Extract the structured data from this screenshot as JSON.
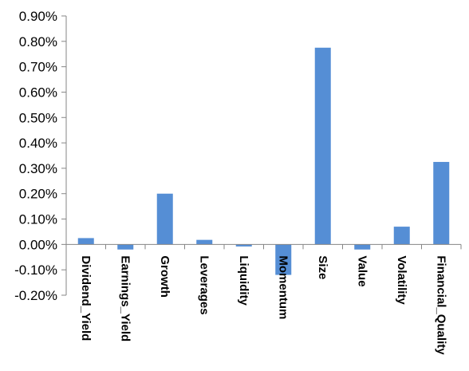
{
  "chart_data": {
    "type": "bar",
    "title": "",
    "xlabel": "",
    "ylabel": "",
    "categories": [
      "Dividend_Yield",
      "Earnings_Yield",
      "Growth",
      "Leverages",
      "Liquidity",
      "Momentum",
      "Size",
      "Value",
      "Volatility",
      "Financial_Quality"
    ],
    "values": [
      0.025,
      -0.02,
      0.2,
      0.018,
      -0.008,
      -0.12,
      0.775,
      -0.02,
      0.07,
      0.325
    ],
    "value_unit": "%",
    "ylim": [
      -0.2,
      0.9
    ],
    "yticks": [
      -0.2,
      -0.1,
      0.0,
      0.1,
      0.2,
      0.3,
      0.4,
      0.5,
      0.6,
      0.7,
      0.8,
      0.9
    ],
    "ytick_labels": [
      "-0.20%",
      "-0.10%",
      "0.00%",
      "0.10%",
      "0.20%",
      "0.30%",
      "0.40%",
      "0.50%",
      "0.60%",
      "0.70%",
      "0.80%",
      "0.90%"
    ],
    "grid": false,
    "legend": "none",
    "bar_color": "#558ed5",
    "axis_color": "#868686"
  }
}
